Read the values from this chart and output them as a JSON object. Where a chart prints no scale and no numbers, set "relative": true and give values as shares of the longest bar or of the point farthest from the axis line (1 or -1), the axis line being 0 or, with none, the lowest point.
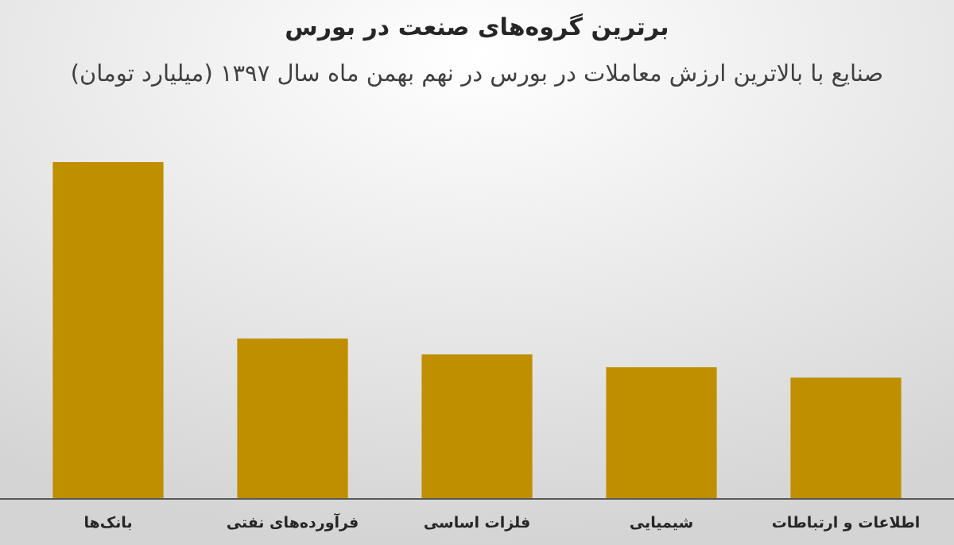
{
  "chart_data": {
    "type": "bar",
    "title": "برترین گروه‌های صنعت در بورس",
    "subtitle": "صنایع با بالاترین ارزش  معاملات در بورس در نهم بهمن ماه سال ۱۳۹۷ (میلیارد تومان)",
    "relative": true,
    "categories": [
      "بانک‌ها",
      "فرآورده‌های نفتی",
      "فلزات اساسی",
      "شیمیایی",
      "اطلاعات و ارتباطات"
    ],
    "values": [
      1,
      0.476,
      0.429,
      0.391,
      0.36
    ],
    "color": "#bf8f00"
  }
}
